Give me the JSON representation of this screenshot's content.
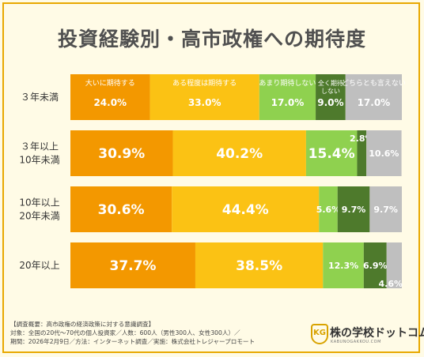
{
  "title": "投資経験別・高市政権への期待度",
  "chart_data": {
    "type": "bar",
    "stacked": true,
    "orientation": "horizontal",
    "percent_scale": 100,
    "categories": [
      "３年未満",
      "３年以上\n10年未満",
      "10年以上\n20年未満",
      "20年以上"
    ],
    "series": [
      {
        "name": "大いに期待する",
        "color": "#f39800",
        "label_color": "#ffffff",
        "values": [
          24.0,
          30.9,
          30.6,
          37.7
        ]
      },
      {
        "name": "ある程度は期待する",
        "color": "#fbc214",
        "label_color": "#ffffff",
        "values": [
          33.0,
          40.2,
          44.4,
          38.5
        ]
      },
      {
        "name": "あまり期待しない",
        "color": "#8fd14f",
        "label_color": "#ffffff",
        "values": [
          17.0,
          15.4,
          5.6,
          12.3
        ]
      },
      {
        "name": "全く期待しない",
        "color": "#4e7a2c",
        "label_color": "#ffffff",
        "values": [
          9.0,
          2.8,
          9.7,
          6.9
        ]
      },
      {
        "name": "どちらとも言えない",
        "color": "#bfbfbf",
        "label_color": "#ffffff",
        "values": [
          17.0,
          10.6,
          9.7,
          4.6
        ]
      }
    ],
    "legend_position": "inside-first-bar"
  },
  "footer": {
    "lines": [
      "【調査概要：高市政権の経済政策に対する意識調査】",
      "対象：全国の20代〜70代の個人投資家／人数：600人（男性300人、女性300人）／",
      "期間：2026年2月9日／方法：インターネット調査／実施：株式会社トレジャープロモート"
    ]
  },
  "logo": {
    "badge": "KG",
    "name": "株の学校ドットコム",
    "sub": "KABUNOGAKKOU.COM"
  }
}
